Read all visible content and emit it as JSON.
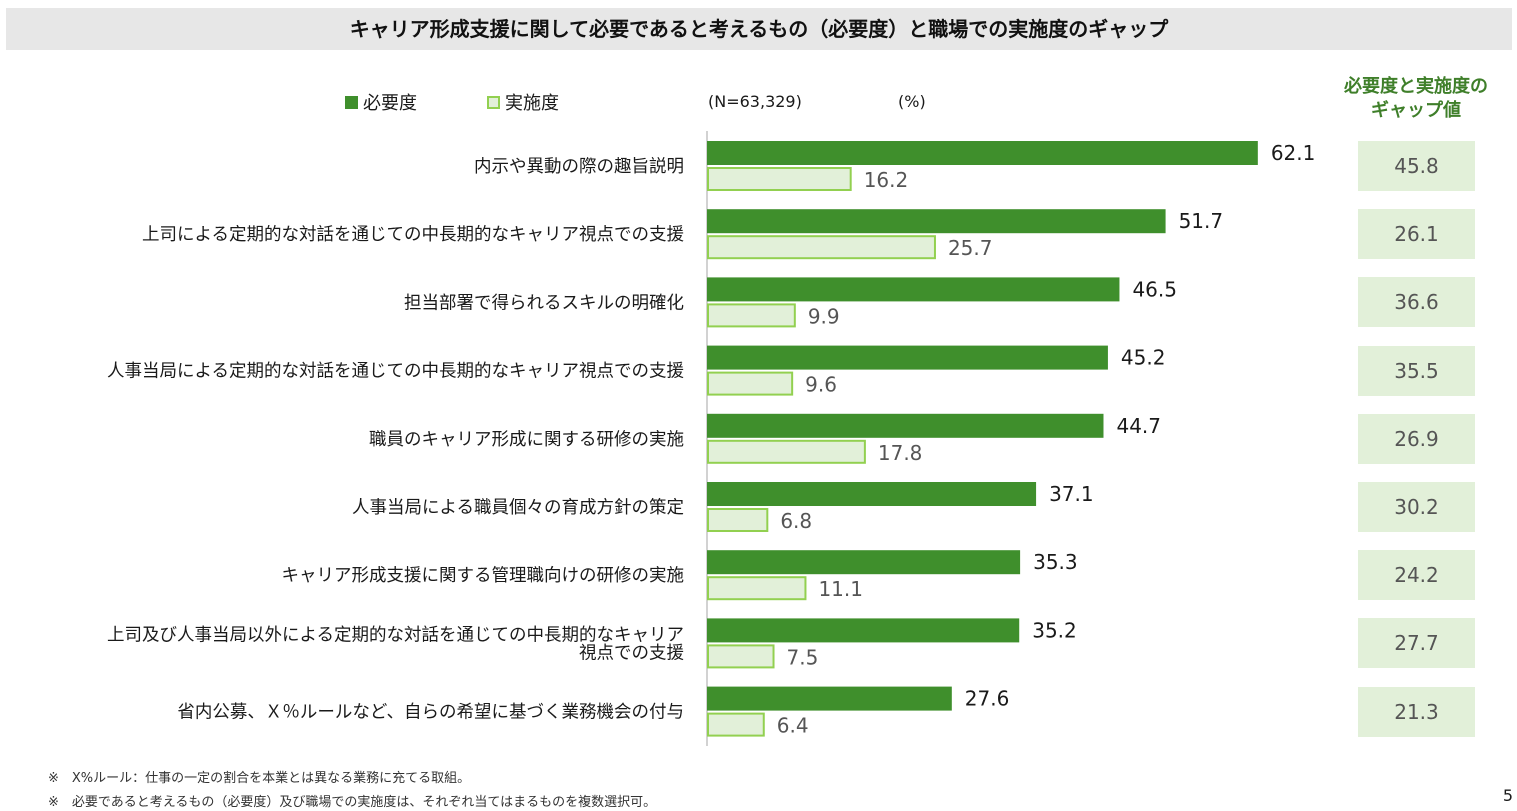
{
  "title": "キャリア形成支援に関して必要であると考えるもの（必要度）と職場での実施度のギャップ",
  "legend": {
    "need": "必要度",
    "implementation": "実施度"
  },
  "sample_note": "(N=63,329)",
  "unit": "(%)",
  "gap_header": [
    "必要度と実施度の",
    "ギャップ値"
  ],
  "colors": {
    "need_bar": "#3f8f2c",
    "implementation_fill": "#e2f0d9",
    "implementation_border": "#92d050",
    "gap_box": "#e2f0d9",
    "gap_header": "#3f7f2a"
  },
  "chart_data": {
    "type": "bar",
    "orientation": "horizontal",
    "categories": [
      [
        "内示や異動の際の趣旨説明"
      ],
      [
        "上司による定期的な対話を通じての中長期的なキャリア視点での支援"
      ],
      [
        "担当部署で得られるスキルの明確化"
      ],
      [
        "人事当局による定期的な対話を通じての中長期的なキャリア視点での支援"
      ],
      [
        "職員のキャリア形成に関する研修の実施"
      ],
      [
        "人事当局による職員個々の育成方針の策定"
      ],
      [
        "キャリア形成支援に関する管理職向けの研修の実施"
      ],
      [
        "上司及び人事当局以外による定期的な対話を通じての中長期的なキャリア",
        "視点での支援"
      ],
      [
        "省内公募、Ｘ％ルールなど、自らの希望に基づく業務機会の付与"
      ]
    ],
    "series": [
      {
        "name": "必要度",
        "values": [
          62.1,
          51.7,
          46.5,
          45.2,
          44.7,
          37.1,
          35.3,
          35.2,
          27.6
        ]
      },
      {
        "name": "実施度",
        "values": [
          16.2,
          25.7,
          9.9,
          9.6,
          17.8,
          6.8,
          11.1,
          7.5,
          6.4
        ]
      }
    ],
    "gap_values": [
      45.8,
      26.1,
      36.6,
      35.5,
      26.9,
      30.2,
      24.2,
      27.7,
      21.3
    ],
    "xlim": [
      0,
      70
    ],
    "data_labels": true,
    "legend_position": "top-left"
  },
  "footnotes": [
    "※　X%ルール：仕事の一定の割合を本業とは異なる業務に充てる取組。",
    "※　必要であると考えるもの（必要度）及び職場での実施度は、それぞれ当てはまるものを複数選択可。"
  ],
  "page_number": "5"
}
